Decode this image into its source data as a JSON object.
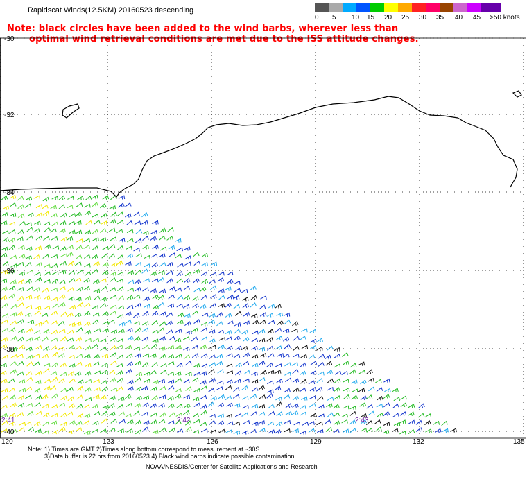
{
  "header": {
    "title": "Rapidscat Winds(12.5KM) 20160523 descending",
    "note_line1": "Note: black circles have been added to the wind barbs, wherever less than",
    "note_line2": "optimal wind retrieval conditions are met due to the ISS attitude changes."
  },
  "color_scale": {
    "colors": [
      "#555555",
      "#aaaaaa",
      "#00aaff",
      "#0055ff",
      "#00cc00",
      "#ffff00",
      "#ffaa00",
      "#ff2222",
      "#ff0066",
      "#994400",
      "#cc66cc",
      "#cc00ff",
      "#6600aa"
    ],
    "labels": [
      "0",
      "5",
      "10",
      "15",
      "20",
      "25",
      "30",
      "35",
      "40",
      "45",
      ">50 knots"
    ]
  },
  "map": {
    "lat_labels": [
      "-30",
      "-32",
      "-34",
      "-36",
      "-38",
      "-40"
    ],
    "lon_labels": [
      "120",
      "123",
      "126",
      "129",
      "132",
      "135"
    ],
    "time_labels": [
      "2:41",
      "2:42",
      "2:43"
    ],
    "barb_colors": {
      "yellow": "#f2e800",
      "green": "#22bb22",
      "lightgreen": "#66dd44",
      "blue": "#1133cc",
      "lightblue": "#22aaee",
      "black": "#111111"
    }
  },
  "footer": {
    "line1": "Note: 1) Times are GMT 2)Times along bottom correspond to measurement at ~30S",
    "line2": "3)Data buffer is 22 hrs from 20160523 4) Black wind barbs indicate possible contamination",
    "line3": "NOAA/NESDIS/Center for Satellite Applications and Research"
  }
}
